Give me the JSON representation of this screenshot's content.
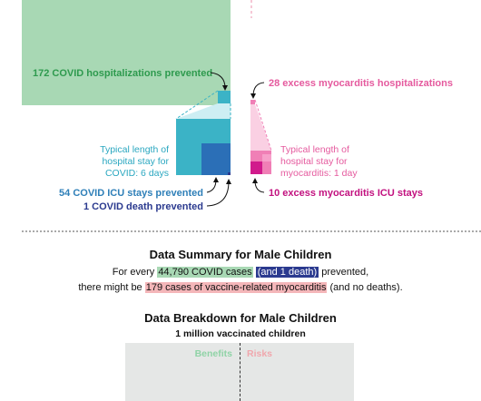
{
  "colors": {
    "covid_hosp": "#a8d8b4",
    "icu_teal": "#3bb3c6",
    "death_blue": "#2b6fb7",
    "death_navy": "#2b3a8f",
    "myo_pink": "#f07fb6",
    "myo_icu_magenta": "#d11b8c",
    "label_green": "#2e9a4e",
    "label_teal": "#2aa7c0",
    "label_pink": "#e55a9e",
    "label_magenta": "#c2117f"
  },
  "chart_data": {
    "type": "area",
    "labels": {
      "covid_hosp": "172 COVID hospitalizations prevented",
      "myo_hosp": "28 excess myocarditis hospitalizations",
      "covid_stay": [
        "Typical length of",
        "hospital stay for",
        "COVID: 6 days"
      ],
      "myo_stay": [
        "Typical length of",
        "hospital stay for",
        "myocarditis: 1 day"
      ],
      "covid_icu": "54 COVID ICU stays prevented",
      "covid_death": "1 COVID death prevented",
      "myo_icu": "10 excess myocarditis ICU stays"
    },
    "benefits": {
      "covid_hospitalizations_prevented": 172,
      "covid_hospital_stay_days": 6,
      "covid_icu_stays_prevented": 54,
      "covid_deaths_prevented": 1
    },
    "risks": {
      "excess_myocarditis_hospitalizations": 28,
      "myocarditis_hospital_stay_days": 1,
      "excess_myocarditis_icu_stays": 10
    }
  },
  "summary": {
    "title": "Data Summary for Male Children",
    "line1_pre": "For every ",
    "line1_cases": "44,790 COVID cases",
    "line1_death": "(and 1 death)",
    "line1_post": " prevented,",
    "line2_pre": "there might be ",
    "line2_myo": "179 cases of vaccine-related myocarditis",
    "line2_post": " (and no deaths)."
  },
  "breakdown": {
    "title": "Data Breakdown for Male Children",
    "subtitle": "1 million vaccinated children",
    "benefits_label": "Benefits",
    "risks_label": "Risks"
  }
}
